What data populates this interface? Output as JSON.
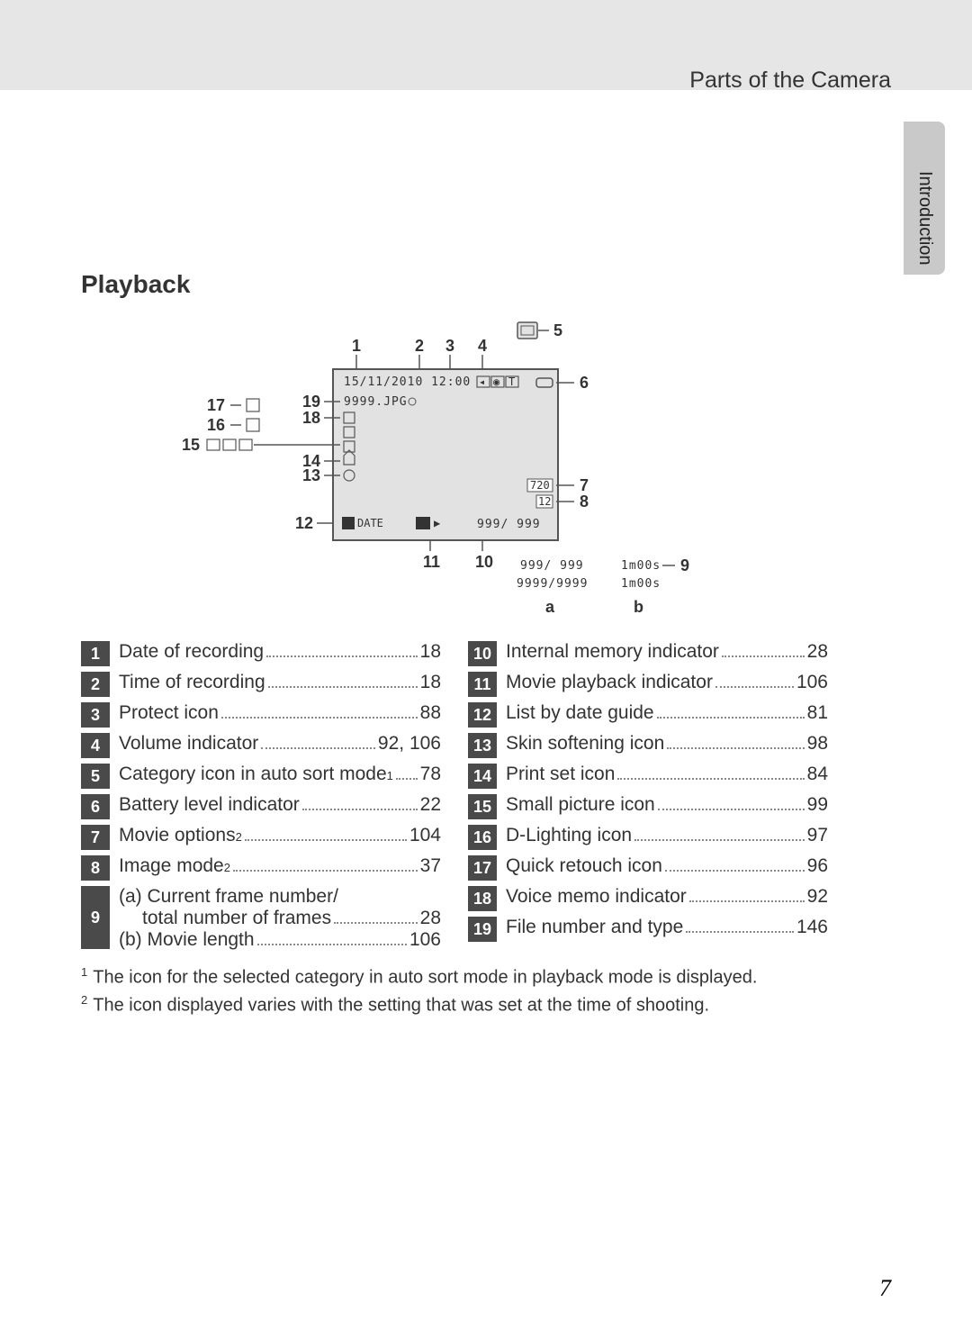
{
  "header": {
    "chapter": "Parts of the Camera",
    "sideTab": "Introduction"
  },
  "section": {
    "title": "Playback"
  },
  "diagram": {
    "frame": {
      "stroke": "#555",
      "fill": "#e2e2e2"
    },
    "screenText": {
      "datetime": "15/11/2010 12:00",
      "filename": "9999.JPG",
      "frameCount1": "999/ 999",
      "frameCount2": "999/ 999",
      "frameCount3": "9999/9999",
      "time1": "1m00s",
      "time2": "1m00s",
      "date": "DATE"
    },
    "callouts": {
      "c1": "1",
      "c2": "2",
      "c3": "3",
      "c4": "4",
      "c5": "5",
      "c6": "6",
      "c7": "7",
      "c8": "8",
      "c9": "9",
      "c10": "10",
      "c11": "11",
      "c12": "12",
      "c13": "13",
      "c14": "14",
      "c15": "15",
      "c16": "16",
      "c17": "17",
      "c18": "18",
      "c19": "19"
    },
    "subLabels": {
      "a": "a",
      "b": "b"
    }
  },
  "indexLeft": [
    {
      "n": "1",
      "label": "Date of recording",
      "page": "18"
    },
    {
      "n": "2",
      "label": "Time of recording",
      "page": "18"
    },
    {
      "n": "3",
      "label": "Protect icon",
      "page": "88"
    },
    {
      "n": "4",
      "label": "Volume indicator",
      "page": "92, 106"
    },
    {
      "n": "5",
      "label": "Category icon in auto sort mode",
      "sup": "1",
      "page": "78"
    },
    {
      "n": "6",
      "label": "Battery level indicator",
      "page": "22"
    },
    {
      "n": "7",
      "label": "Movie options",
      "sup": "2",
      "page": "104"
    },
    {
      "n": "8",
      "label": "Image mode",
      "sup": "2",
      "page": "37"
    }
  ],
  "indexLeft9": {
    "n": "9",
    "a": "(a)  Current frame number/",
    "a2": "total number of frames",
    "pa": "28",
    "b": "(b)  Movie length",
    "pb": "106"
  },
  "indexRight": [
    {
      "n": "10",
      "label": "Internal memory indicator",
      "page": "28"
    },
    {
      "n": "11",
      "label": "Movie playback indicator",
      "page": "106"
    },
    {
      "n": "12",
      "label": "List by date guide",
      "page": "81"
    },
    {
      "n": "13",
      "label": "Skin softening icon",
      "page": "98"
    },
    {
      "n": "14",
      "label": "Print set icon",
      "page": "84"
    },
    {
      "n": "15",
      "label": "Small picture icon",
      "page": "99"
    },
    {
      "n": "16",
      "label": "D-Lighting icon",
      "page": "97"
    },
    {
      "n": "17",
      "label": "Quick retouch icon",
      "page": "96"
    },
    {
      "n": "18",
      "label": "Voice memo indicator",
      "page": "92"
    },
    {
      "n": "19",
      "label": "File number and type",
      "page": "146"
    }
  ],
  "footnotes": {
    "f1": "The icon for the selected category in auto sort mode in playback mode is displayed.",
    "f2": "The icon displayed varies with the setting that was set at the time of shooting."
  },
  "pageNumber": "7",
  "colors": {
    "numbox": "#4a4a4a",
    "text": "#333333",
    "topbar": "#e6e6e6",
    "sidetab": "#c9c9c9"
  }
}
